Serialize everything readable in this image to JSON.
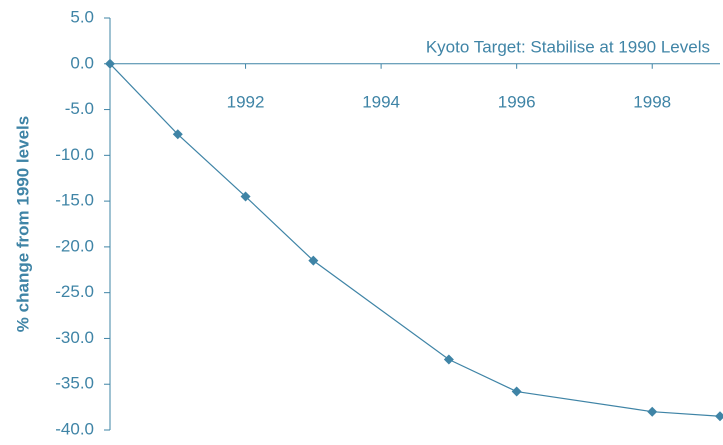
{
  "chart_data": {
    "type": "line",
    "y_label": "% change from 1990 levels",
    "annotation": "Kyoto Target: Stabilise at 1990 Levels",
    "x": [
      1990,
      1991,
      1992,
      1993,
      1995,
      1996,
      1998,
      1999
    ],
    "values": [
      0,
      -7.7,
      -14.5,
      -21.5,
      -32.3,
      -35.8,
      -38.0,
      -38.5
    ],
    "color": "#3f84a6",
    "xlim": [
      1990,
      1999
    ],
    "xticks": [
      1992,
      1994,
      1996,
      1998
    ],
    "ylim": [
      -40,
      5
    ],
    "yticks": [
      {
        "value": 5,
        "label": "5.0"
      },
      {
        "value": 0,
        "label": "0.0"
      },
      {
        "value": -5,
        "label": "-5.0"
      },
      {
        "value": -10,
        "label": "-10.0"
      },
      {
        "value": -15,
        "label": "-15.0"
      },
      {
        "value": -20,
        "label": "-20.0"
      },
      {
        "value": -25,
        "label": "-25.0"
      },
      {
        "value": -30,
        "label": "-30.0"
      },
      {
        "value": -35,
        "label": "-35.0"
      },
      {
        "value": -40,
        "label": "-40.0"
      }
    ],
    "grid": false
  }
}
